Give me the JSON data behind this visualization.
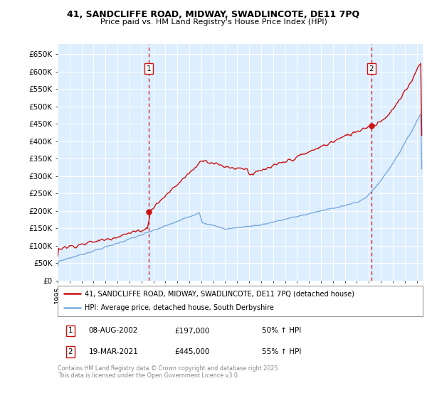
{
  "title_line1": "41, SANDCLIFFE ROAD, MIDWAY, SWADLINCOTE, DE11 7PQ",
  "title_line2": "Price paid vs. HM Land Registry's House Price Index (HPI)",
  "yticks": [
    0,
    50000,
    100000,
    150000,
    200000,
    250000,
    300000,
    350000,
    400000,
    450000,
    500000,
    550000,
    600000,
    650000
  ],
  "ytick_labels": [
    "£0",
    "£50K",
    "£100K",
    "£150K",
    "£200K",
    "£250K",
    "£300K",
    "£350K",
    "£400K",
    "£450K",
    "£500K",
    "£550K",
    "£600K",
    "£650K"
  ],
  "ylim": [
    0,
    680000
  ],
  "xlim_start": 1995.33,
  "xlim_end": 2025.5,
  "background_color": "#ddeeff",
  "fig_bg_color": "#ffffff",
  "grid_color": "#ffffff",
  "hpi_color": "#7aaadd",
  "price_color": "#cc1111",
  "vline_color": "#cc1111",
  "purchase1_x": 2002.6,
  "purchase1_y": 197000,
  "purchase2_x": 2021.21,
  "purchase2_y": 445000,
  "legend_line1": "41, SANDCLIFFE ROAD, MIDWAY, SWADLINCOTE, DE11 7PQ (detached house)",
  "legend_line2": "HPI: Average price, detached house, South Derbyshire",
  "annotation1_date": "08-AUG-2002",
  "annotation1_price": "£197,000",
  "annotation1_hpi": "50% ↑ HPI",
  "annotation2_date": "19-MAR-2021",
  "annotation2_price": "£445,000",
  "annotation2_hpi": "55% ↑ HPI",
  "footer": "Contains HM Land Registry data © Crown copyright and database right 2025.\nThis data is licensed under the Open Government Licence v3.0."
}
